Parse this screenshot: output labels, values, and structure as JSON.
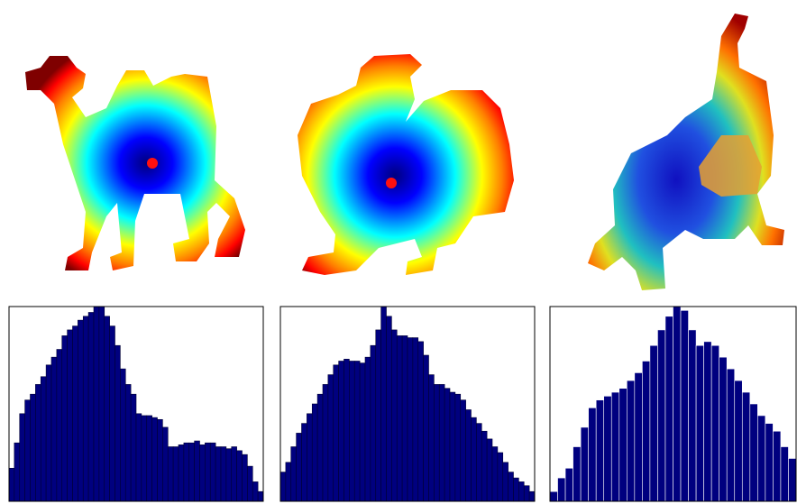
{
  "chart_data": [
    {
      "type": "bar",
      "color": "#00007f",
      "edge": "#000033",
      "ylim": [
        0,
        100
      ],
      "values": [
        17,
        30,
        45,
        52,
        55,
        60,
        64,
        70,
        74,
        78,
        85,
        88,
        90,
        93,
        95,
        97,
        100,
        100,
        95,
        90,
        80,
        68,
        60,
        55,
        45,
        44,
        44,
        43,
        42,
        38,
        28,
        28,
        29,
        30,
        30,
        31,
        29,
        30,
        30,
        28,
        28,
        27,
        28,
        26,
        24,
        18,
        10,
        5
      ]
    },
    {
      "type": "bar",
      "color": "#00007f",
      "edge": "#000033",
      "ylim": [
        0,
        100
      ],
      "values": [
        15,
        20,
        28,
        35,
        40,
        45,
        50,
        55,
        60,
        65,
        70,
        72,
        73,
        72,
        72,
        71,
        74,
        80,
        88,
        100,
        95,
        88,
        85,
        85,
        84,
        84,
        82,
        75,
        65,
        60,
        60,
        58,
        56,
        55,
        52,
        47,
        43,
        40,
        36,
        32,
        28,
        25,
        20,
        15,
        12,
        10,
        8,
        5
      ]
    },
    {
      "type": "bar",
      "color": "#00007f",
      "edge": "#ffffff",
      "ylim": [
        0,
        100
      ],
      "values": [
        5,
        12,
        17,
        28,
        38,
        48,
        52,
        54,
        56,
        58,
        62,
        66,
        72,
        80,
        88,
        95,
        100,
        98,
        88,
        80,
        82,
        80,
        74,
        68,
        62,
        56,
        50,
        44,
        40,
        36,
        28,
        22
      ]
    }
  ]
}
